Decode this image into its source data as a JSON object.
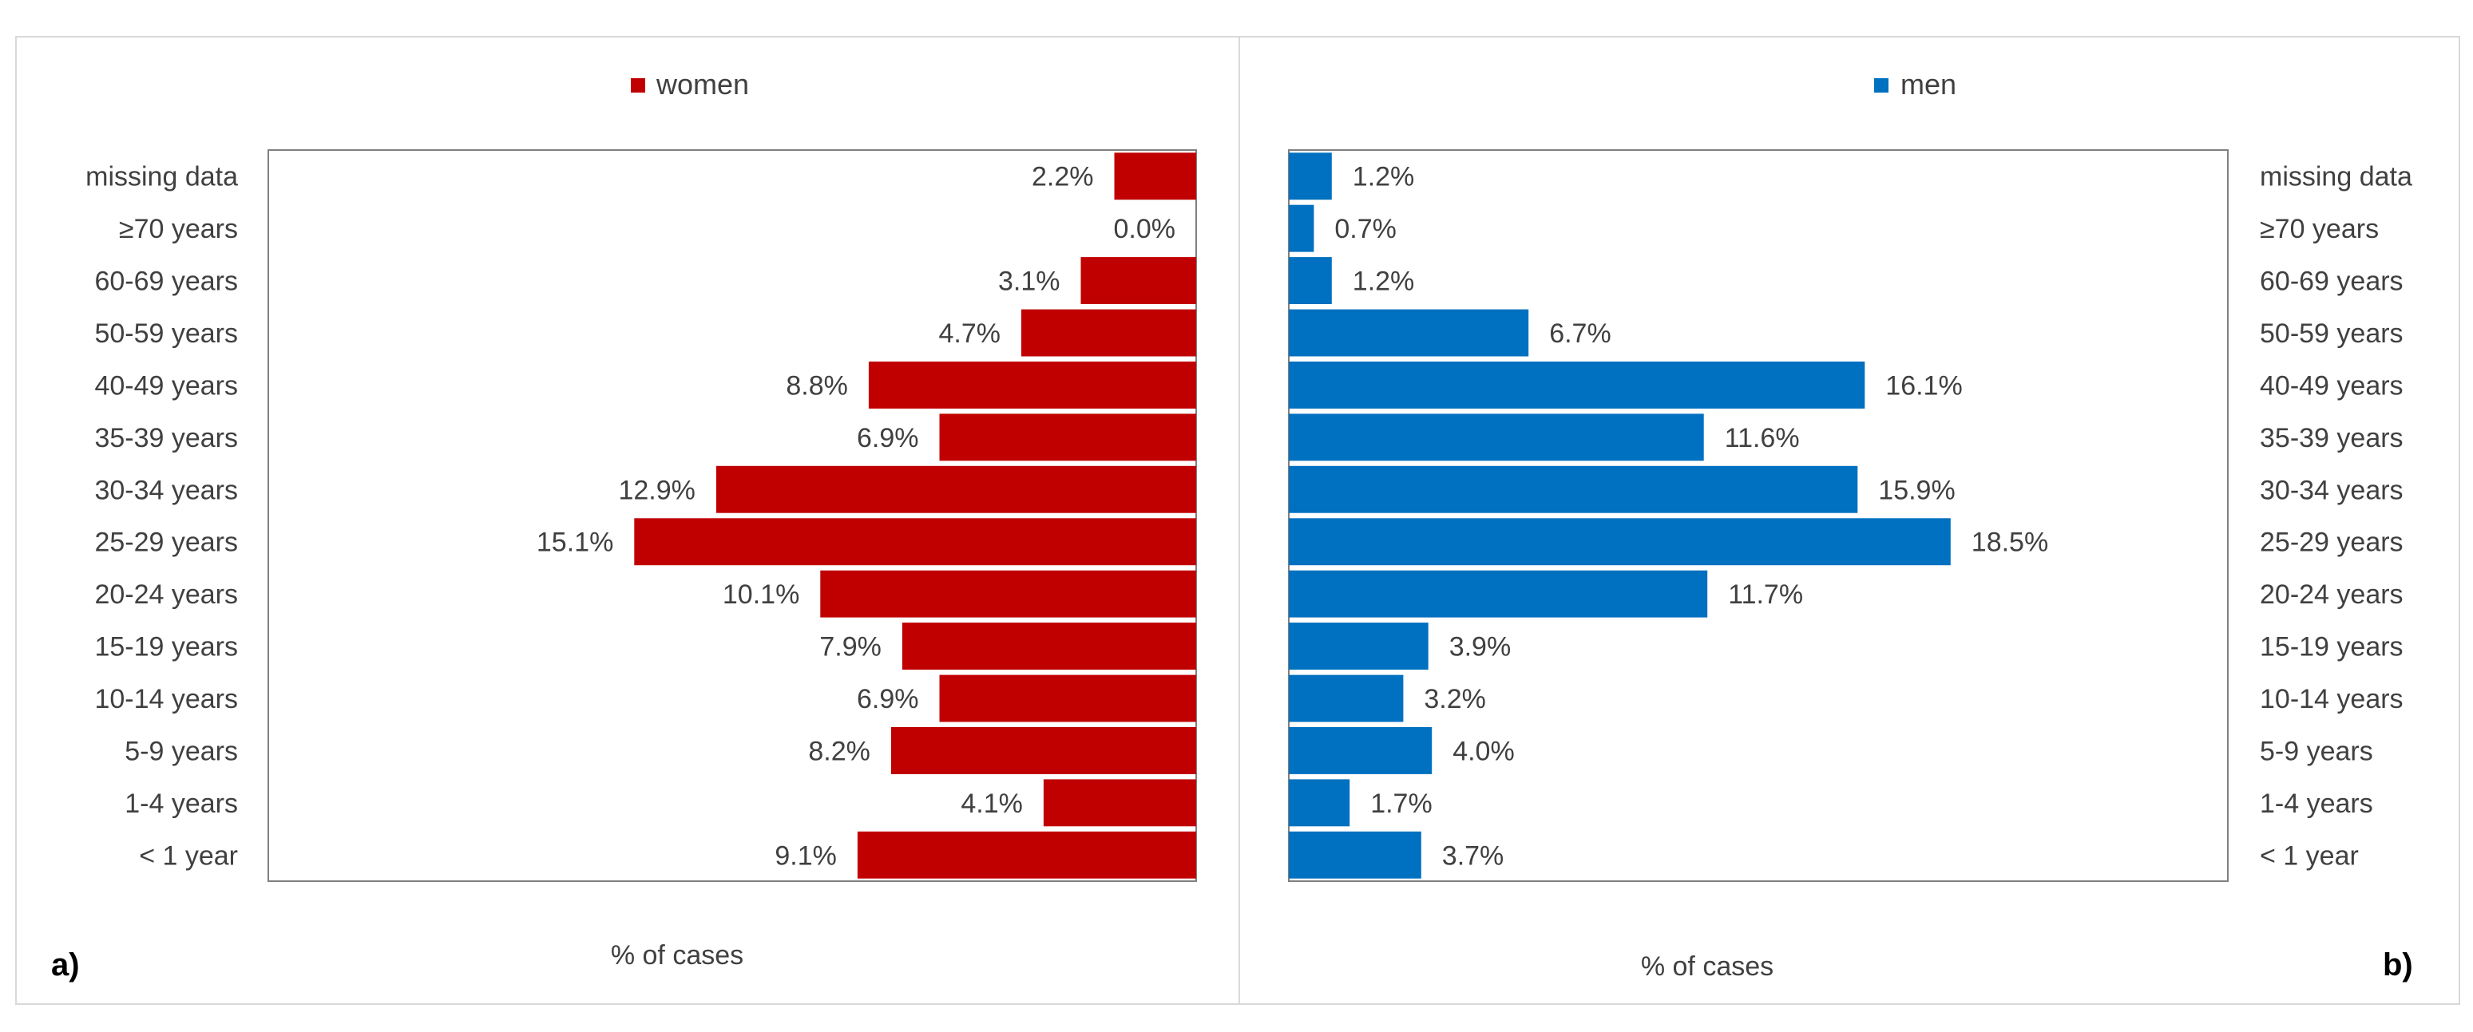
{
  "chart_data": [
    {
      "type": "bar",
      "orientation": "horizontal",
      "direction": "right-to-left",
      "panel_label": "a)",
      "xlabel": "% of cases",
      "ylabel": "",
      "legend": {
        "label": "women",
        "color": "#C00000",
        "position": "top-center"
      },
      "categories": [
        "missing data",
        "≥70 years",
        "60-69 years",
        "50-59 years",
        "40-49 years",
        "35-39 years",
        "30-34 years",
        "25-29 years",
        "20-24 years",
        "15-19 years",
        "10-14 years",
        "5-9 years",
        "1-4 years",
        "< 1 year"
      ],
      "values": [
        2.2,
        0.0,
        3.1,
        4.7,
        8.8,
        6.9,
        12.9,
        15.1,
        10.1,
        7.9,
        6.9,
        8.2,
        4.1,
        9.1
      ],
      "labels": [
        "2.2%",
        "0.0%",
        "3.1%",
        "4.7%",
        "8.8%",
        "6.9%",
        "12.9%",
        "15.1%",
        "10.1%",
        "7.9%",
        "6.9%",
        "8.2%",
        "4.1%",
        "9.1%"
      ],
      "xlim": [
        0,
        25
      ],
      "category_axis_side": "left"
    },
    {
      "type": "bar",
      "orientation": "horizontal",
      "direction": "left-to-right",
      "panel_label": "b)",
      "xlabel": "% of cases",
      "ylabel": "",
      "legend": {
        "label": "men",
        "color": "#0070C0",
        "position": "top-center"
      },
      "categories": [
        "missing data",
        "≥70 years",
        "60-69 years",
        "50-59 years",
        "40-49 years",
        "35-39 years",
        "30-34 years",
        "25-29 years",
        "20-24 years",
        "15-19 years",
        "10-14 years",
        "5-9 years",
        "1-4 years",
        "< 1 year"
      ],
      "values": [
        1.2,
        0.7,
        1.2,
        6.7,
        16.1,
        11.6,
        15.9,
        18.5,
        11.7,
        3.9,
        3.2,
        4.0,
        1.7,
        3.7
      ],
      "labels": [
        "1.2%",
        "0.7%",
        "1.2%",
        "6.7%",
        "16.1%",
        "11.6%",
        "15.9%",
        "18.5%",
        "11.7%",
        "3.9%",
        "3.2%",
        "4.0%",
        "1.7%",
        "3.7%"
      ],
      "xlim": [
        0,
        25
      ],
      "category_axis_side": "right"
    }
  ]
}
